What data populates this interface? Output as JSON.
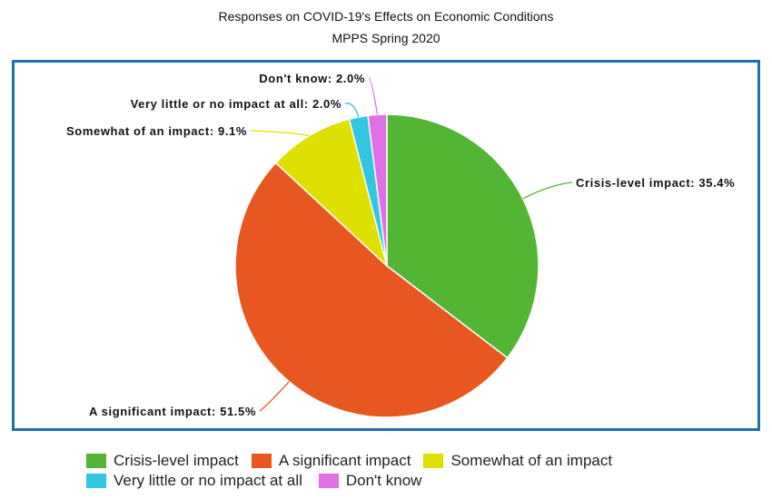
{
  "chart_data": {
    "type": "pie",
    "title": "Responses on COVID-19's Effects on Economic Conditions",
    "subtitle": "MPPS Spring 2020",
    "slices": [
      {
        "label": "Crisis-level impact",
        "value": 35.4,
        "display": "Crisis-level impact: 35.4%",
        "color": "#52b534"
      },
      {
        "label": "A significant impact",
        "value": 51.5,
        "display": "A significant impact: 51.5%",
        "color": "#e85720"
      },
      {
        "label": "Somewhat of an impact",
        "value": 9.1,
        "display": "Somewhat of an impact: 9.1%",
        "color": "#dde000"
      },
      {
        "label": "Very little or no impact at all",
        "value": 2.0,
        "display": "Very little or no impact at all: 2.0%",
        "color": "#33c6e0"
      },
      {
        "label": "Don't know",
        "value": 2.0,
        "display": "Don't know: 2.0%",
        "color": "#e070e6"
      }
    ],
    "legend_position": "bottom"
  }
}
